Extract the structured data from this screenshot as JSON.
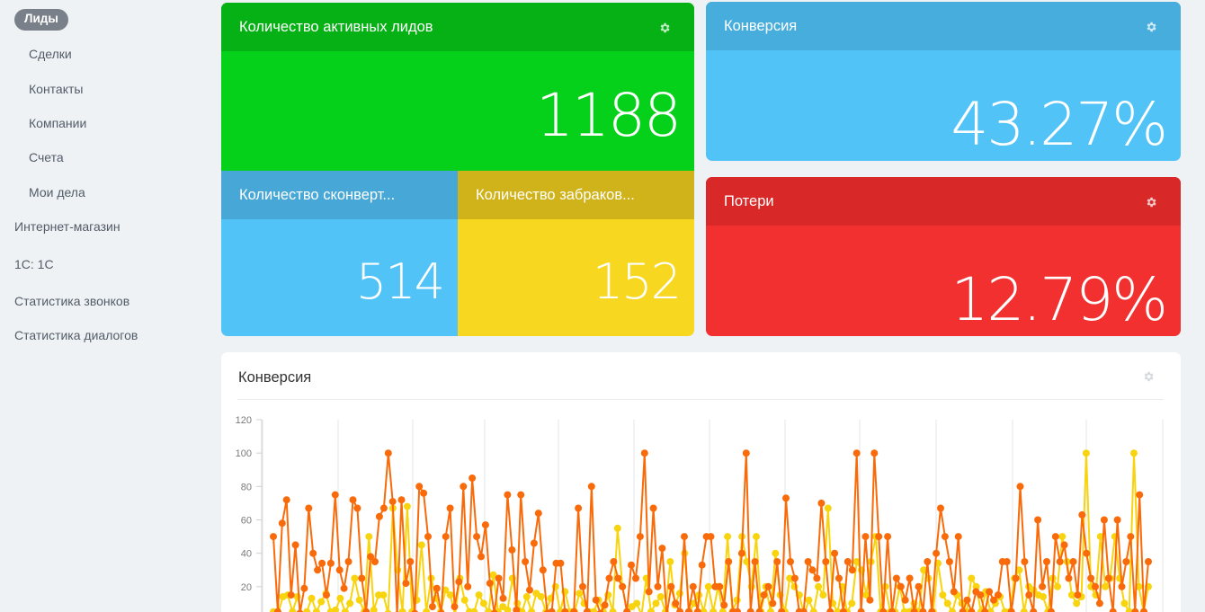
{
  "sidebar": {
    "items": [
      {
        "label": "Лиды",
        "active": true
      },
      {
        "label": "Сделки"
      },
      {
        "label": "Контакты"
      },
      {
        "label": "Компании"
      },
      {
        "label": "Счета"
      },
      {
        "label": "Мои дела"
      },
      {
        "label": "Интернет-магазин"
      },
      {
        "label": "1С: 1С"
      },
      {
        "label": "Статистика звонков"
      },
      {
        "label": "Статистика диалогов"
      }
    ]
  },
  "tiles": {
    "active_leads": {
      "title": "Количество активных лидов",
      "value": "1188",
      "icon": "gear-icon",
      "color": "#06d11a"
    },
    "converted": {
      "title": "Количество сконверт...",
      "value": "514",
      "color": "#51c3f6"
    },
    "rejected": {
      "title": "Количество забраков...",
      "value": "152",
      "color": "#f7d71f"
    },
    "conversion": {
      "title": "Конверсия",
      "value": "43.27%",
      "icon": "gear-icon",
      "color": "#51c3f6"
    },
    "losses": {
      "title": "Потери",
      "value": "12.79%",
      "icon": "gear-icon",
      "color": "#f23030"
    }
  },
  "chart_card": {
    "title": "Конверсия",
    "icon": "gear-icon"
  },
  "chart_data": {
    "type": "line",
    "ylim": [
      0,
      120
    ],
    "yticks": [
      20,
      40,
      60,
      80,
      100,
      120
    ],
    "series": [
      {
        "color": "#f96b0a",
        "values": [
          50,
          5,
          58,
          72,
          15,
          45,
          4,
          19,
          67,
          40,
          30,
          34,
          15,
          34,
          75,
          30,
          19,
          35,
          72,
          67,
          25,
          5,
          38,
          35,
          62,
          67,
          100,
          71,
          3,
          72,
          22,
          35,
          4,
          80,
          76,
          50,
          8,
          19,
          4,
          50,
          67,
          8,
          23,
          80,
          20,
          85,
          50,
          38,
          57,
          22,
          4,
          25,
          13,
          75,
          42,
          6,
          75,
          35,
          18,
          46,
          64,
          30,
          4,
          5,
          34,
          34,
          5,
          0,
          5,
          67,
          20,
          5,
          80,
          12,
          4,
          9,
          25,
          35,
          25,
          20,
          5,
          33,
          25,
          50,
          100,
          17,
          67,
          20,
          43,
          3,
          20,
          10,
          5,
          50,
          5,
          20,
          5,
          33,
          50,
          50,
          20,
          20,
          9,
          35,
          5,
          5,
          40,
          100,
          5,
          35,
          5,
          15,
          20,
          10,
          35,
          5,
          73,
          35,
          25,
          5,
          5,
          35,
          30,
          25,
          70,
          35,
          5,
          40,
          25,
          5,
          35,
          30,
          100,
          5,
          50,
          12,
          100,
          50,
          5,
          50,
          5,
          25,
          20,
          12,
          25,
          5,
          20,
          5,
          35,
          5,
          40,
          67,
          50,
          35,
          17,
          50,
          5,
          12,
          5,
          17,
          15,
          5,
          17,
          12,
          15,
          35,
          35,
          5,
          25,
          80,
          35,
          15,
          5,
          60,
          20,
          35,
          5,
          50,
          35,
          45,
          25,
          35,
          15,
          63,
          40,
          25,
          20,
          10,
          60,
          25,
          5,
          60,
          20,
          35,
          50,
          5,
          75,
          5,
          35
        ],
        "name": ""
      },
      {
        "color": "#f8d40f",
        "values": [
          5,
          4,
          14,
          15,
          5,
          14,
          3,
          5,
          13,
          5,
          11,
          16,
          5,
          6,
          13,
          5,
          10,
          25,
          12,
          5,
          50,
          6,
          15,
          15,
          4,
          67,
          30,
          5,
          68,
          5,
          12,
          45,
          5,
          25,
          13,
          5,
          18,
          15,
          3,
          25,
          12,
          5,
          5,
          15,
          10,
          5,
          27,
          5,
          8,
          6,
          25,
          10,
          5,
          14,
          5,
          16,
          14,
          5,
          13,
          20,
          5,
          17,
          5,
          5,
          16,
          10,
          5,
          5,
          12,
          5,
          15,
          5,
          55,
          20,
          5,
          8,
          10,
          3,
          25,
          5,
          10,
          14,
          5,
          35,
          9,
          16,
          40,
          5,
          10,
          15,
          5,
          20,
          5,
          20,
          5,
          50,
          5,
          12,
          50,
          35,
          20,
          50,
          5,
          20,
          5,
          40,
          15,
          5,
          25,
          20,
          15,
          3,
          12,
          5,
          20,
          15,
          67,
          10,
          5,
          20,
          5,
          10,
          35,
          30,
          15,
          35,
          50,
          5,
          20,
          5,
          5,
          20,
          5,
          5,
          10,
          5,
          30,
          25,
          5,
          34,
          15,
          10,
          5,
          15,
          10,
          5,
          25,
          20,
          5,
          17,
          5,
          10,
          14,
          5,
          5,
          25,
          30,
          5,
          20,
          18,
          15,
          14,
          5,
          25,
          20,
          50,
          35,
          15,
          10,
          14,
          100,
          20,
          15,
          50,
          20,
          25,
          50,
          25,
          10,
          5,
          100,
          20,
          5,
          20
        ]
      }
    ]
  }
}
